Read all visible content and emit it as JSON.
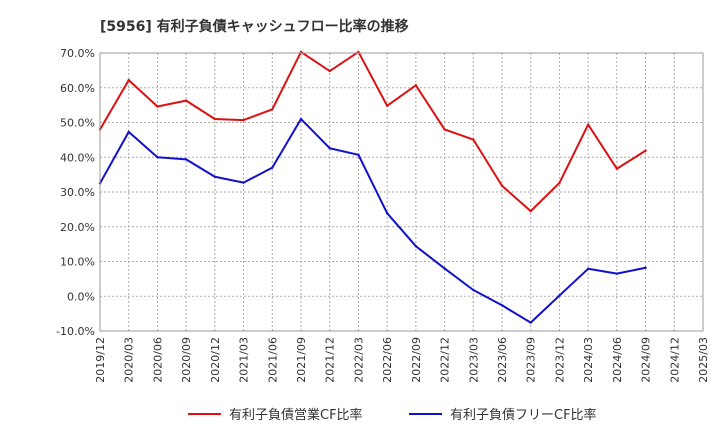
{
  "chart_data": {
    "type": "line",
    "title": "[5956]  有利子負債キャッシュフロー比率の推移",
    "x": [
      "2019/12",
      "2020/03",
      "2020/06",
      "2020/09",
      "2020/12",
      "2021/03",
      "2021/06",
      "2021/09",
      "2021/12",
      "2022/03",
      "2022/06",
      "2022/09",
      "2022/12",
      "2023/03",
      "2023/06",
      "2023/09",
      "2023/12",
      "2024/03",
      "2024/06",
      "2024/09"
    ],
    "x_ticks": [
      "2019/12",
      "2020/03",
      "2020/06",
      "2020/09",
      "2020/12",
      "2021/03",
      "2021/06",
      "2021/09",
      "2021/12",
      "2022/03",
      "2022/06",
      "2022/09",
      "2022/12",
      "2023/03",
      "2023/06",
      "2023/09",
      "2023/12",
      "2024/03",
      "2024/06",
      "2024/09",
      "2024/12",
      "2025/03"
    ],
    "y_ticks": [
      "70.0%",
      "60.0%",
      "50.0%",
      "40.0%",
      "30.0%",
      "20.0%",
      "10.0%",
      "0.0%",
      "-10.0%"
    ],
    "ylim": [
      -10,
      70
    ],
    "grid": true,
    "legend_position": "bottom",
    "series": [
      {
        "name": "有利子負債営業CF比率",
        "color": "#dd1111",
        "values": [
          48.0,
          62.2,
          54.6,
          56.3,
          51.0,
          50.7,
          53.8,
          70.3,
          64.8,
          70.3,
          54.8,
          60.7,
          48.0,
          45.1,
          31.8,
          24.5,
          32.6,
          49.4,
          36.7,
          41.9
        ]
      },
      {
        "name": "有利子負債フリーCF比率",
        "color": "#1111cc",
        "values": [
          32.5,
          47.3,
          40.0,
          39.4,
          34.4,
          32.7,
          37.0,
          51.0,
          42.6,
          40.7,
          23.9,
          14.4,
          8.0,
          1.8,
          -2.6,
          -7.6,
          0.2,
          7.9,
          6.5,
          8.2
        ]
      }
    ]
  }
}
